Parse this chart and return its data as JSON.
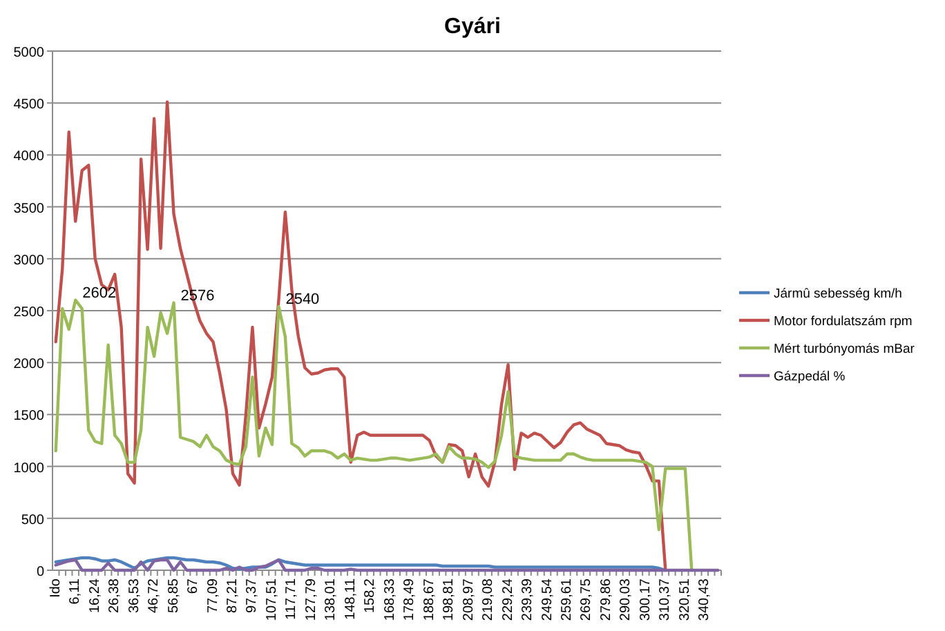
{
  "chart_data": {
    "type": "line",
    "title": "Gyári",
    "categories": [
      "Ido",
      null,
      null,
      "6,11",
      null,
      null,
      "16,24",
      null,
      null,
      "26,38",
      null,
      null,
      "36,53",
      null,
      null,
      "46,72",
      null,
      null,
      "56,85",
      null,
      null,
      "67",
      null,
      null,
      "77,09",
      null,
      null,
      "87,21",
      null,
      null,
      "97,37",
      null,
      null,
      "107,51",
      null,
      null,
      "117,71",
      null,
      null,
      "127,79",
      null,
      null,
      "138,01",
      null,
      null,
      "148,11",
      null,
      null,
      "158,2",
      null,
      null,
      "168,33",
      null,
      null,
      "178,49",
      null,
      null,
      "188,67",
      null,
      null,
      "198,81",
      null,
      null,
      "208,97",
      null,
      null,
      "219,08",
      null,
      null,
      "229,24",
      null,
      null,
      "239,39",
      null,
      null,
      "249,54",
      null,
      null,
      "259,61",
      null,
      null,
      "269,75",
      null,
      null,
      "279,86",
      null,
      null,
      "290,03",
      null,
      null,
      "300,17",
      null,
      null,
      "310,37",
      null,
      null,
      "320,51",
      null,
      null,
      "340,43",
      null,
      null
    ],
    "series": [
      {
        "name": "Jármû sebesség  km/h",
        "color": "#4f81bd",
        "values": [
          80,
          90,
          100,
          110,
          120,
          120,
          110,
          90,
          90,
          100,
          80,
          50,
          20,
          60,
          90,
          100,
          110,
          120,
          120,
          110,
          100,
          100,
          90,
          80,
          80,
          70,
          50,
          20,
          10,
          20,
          30,
          30,
          30,
          60,
          100,
          80,
          70,
          60,
          50,
          50,
          50,
          50,
          50,
          50,
          50,
          50,
          50,
          50,
          50,
          50,
          50,
          50,
          50,
          50,
          50,
          50,
          50,
          50,
          50,
          40,
          40,
          40,
          40,
          40,
          40,
          40,
          40,
          30,
          30,
          30,
          30,
          30,
          30,
          30,
          30,
          30,
          30,
          30,
          30,
          30,
          30,
          30,
          30,
          30,
          30,
          30,
          30,
          30,
          30,
          30,
          30,
          30,
          20,
          0,
          null,
          null,
          null,
          null,
          null,
          null,
          null,
          null
        ]
      },
      {
        "name": "Motor fordulatszám  rpm",
        "color": "#c0504d",
        "values": [
          2200,
          2900,
          4220,
          3360,
          3850,
          3900,
          3000,
          2750,
          2700,
          2850,
          2340,
          930,
          840,
          3960,
          3090,
          4350,
          3100,
          4510,
          3430,
          3100,
          2850,
          2600,
          2400,
          2280,
          2200,
          1900,
          1550,
          930,
          820,
          1500,
          2340,
          1370,
          1600,
          1860,
          2600,
          3450,
          2700,
          2250,
          1950,
          1890,
          1900,
          1930,
          1940,
          1940,
          1860,
          1040,
          1300,
          1330,
          1300,
          1300,
          1300,
          1300,
          1300,
          1300,
          1300,
          1300,
          1300,
          1250,
          1100,
          1040,
          1210,
          1200,
          1150,
          900,
          1120,
          900,
          810,
          1050,
          1600,
          1980,
          970,
          1320,
          1280,
          1320,
          1300,
          1240,
          1180,
          1230,
          1330,
          1400,
          1420,
          1360,
          1330,
          1300,
          1220,
          1210,
          1200,
          1160,
          1140,
          1130,
          1010,
          860,
          860,
          0,
          null,
          null,
          null,
          null,
          null,
          null,
          null,
          null
        ]
      },
      {
        "name": "Mért turbónyomás mBar",
        "color": "#9bbb59",
        "values": [
          1150,
          2520,
          2320,
          2602,
          2520,
          1350,
          1240,
          1220,
          2170,
          1300,
          1220,
          1040,
          1040,
          1350,
          2340,
          2060,
          2480,
          2280,
          2576,
          1280,
          1260,
          1240,
          1190,
          1300,
          1190,
          1150,
          1060,
          1030,
          1020,
          1190,
          1860,
          1100,
          1370,
          1210,
          2540,
          2250,
          1220,
          1180,
          1100,
          1150,
          1150,
          1150,
          1130,
          1080,
          1120,
          1060,
          1080,
          1070,
          1060,
          1060,
          1070,
          1080,
          1080,
          1070,
          1060,
          1070,
          1080,
          1090,
          1120,
          1040,
          1190,
          1120,
          1080,
          1080,
          1070,
          1040,
          990,
          1050,
          1300,
          1720,
          1100,
          1080,
          1070,
          1060,
          1060,
          1060,
          1060,
          1060,
          1120,
          1120,
          1090,
          1070,
          1060,
          1060,
          1060,
          1060,
          1060,
          1060,
          1060,
          1050,
          1040,
          1000,
          390,
          980,
          980,
          980,
          980,
          0,
          null,
          null,
          null,
          null
        ],
        "value_labels": [
          null,
          null,
          null,
          "2602",
          null,
          null,
          null,
          null,
          null,
          null,
          null,
          null,
          null,
          null,
          null,
          null,
          null,
          null,
          "2576",
          null,
          null,
          null,
          null,
          null,
          null,
          null,
          null,
          null,
          null,
          null,
          null,
          null,
          null,
          null,
          "2540",
          null,
          null,
          null,
          null,
          null,
          null,
          null,
          null,
          null,
          null,
          null,
          null,
          null,
          null,
          null,
          null,
          null,
          null,
          null,
          null,
          null,
          null,
          null,
          null,
          null,
          null,
          null,
          null,
          null,
          null,
          null,
          null,
          null,
          null,
          null,
          null,
          null,
          null,
          null,
          null,
          null,
          null,
          null,
          null,
          null,
          null,
          null,
          null,
          null,
          null,
          null,
          null,
          null,
          null,
          null,
          null,
          null,
          null,
          null,
          null,
          null,
          null,
          null,
          null,
          null,
          null,
          null
        ]
      },
      {
        "name": "Gázpedál %",
        "color": "#8064a2",
        "values": [
          50,
          70,
          90,
          100,
          0,
          0,
          0,
          0,
          70,
          0,
          0,
          0,
          0,
          80,
          0,
          90,
          100,
          100,
          0,
          80,
          0,
          0,
          0,
          0,
          0,
          0,
          20,
          0,
          30,
          0,
          0,
          30,
          40,
          70,
          100,
          0,
          0,
          0,
          0,
          20,
          20,
          0,
          0,
          0,
          0,
          10,
          0,
          0,
          0,
          0,
          0,
          0,
          0,
          0,
          0,
          0,
          0,
          0,
          0,
          0,
          0,
          0,
          0,
          0,
          0,
          0,
          0,
          0,
          0,
          0,
          0,
          0,
          0,
          0,
          0,
          0,
          0,
          0,
          0,
          0,
          0,
          0,
          0,
          0,
          0,
          0,
          0,
          0,
          0,
          0,
          0,
          0,
          0,
          0,
          0,
          0,
          0,
          0,
          0,
          0,
          0,
          0
        ]
      }
    ],
    "ylim": [
      0,
      5000
    ],
    "yticks": [
      0,
      500,
      1000,
      1500,
      2000,
      2500,
      3000,
      3500,
      4000,
      4500,
      5000
    ],
    "grid": "y",
    "legend": "right"
  }
}
